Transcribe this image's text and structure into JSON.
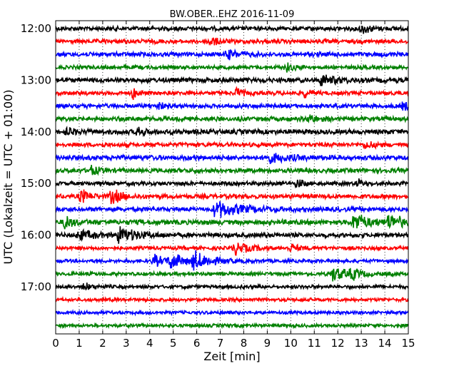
{
  "chart_data": {
    "type": "line",
    "title": "BW.OBER..EHZ 2016-11-09",
    "xlabel": "Zeit  [min]",
    "ylabel": "UTC (Lokalzeit = UTC + 01:00)",
    "xlim": [
      0,
      15
    ],
    "x_ticks": [
      "0",
      "1",
      "2",
      "3",
      "4",
      "5",
      "6",
      "7",
      "8",
      "9",
      "10",
      "11",
      "12",
      "13",
      "14",
      "15"
    ],
    "y_tick_labels": [
      "12:00",
      "13:00",
      "14:00",
      "15:00",
      "16:00",
      "17:00"
    ],
    "grid": {
      "vertical_dotted": true
    },
    "trace_colors": [
      "#000000",
      "#ff0000",
      "#0000ff",
      "#008000"
    ],
    "traces": [
      {
        "start": "12:00",
        "color": "#000000",
        "noise": 0.9,
        "events": [
          {
            "t": 13.0,
            "amp": 1.6,
            "dur": 0.6
          }
        ]
      },
      {
        "start": "12:15",
        "color": "#ff0000",
        "noise": 0.9,
        "events": [
          {
            "t": 6.5,
            "amp": 1.4,
            "dur": 0.8
          }
        ]
      },
      {
        "start": "12:30",
        "color": "#0000ff",
        "noise": 1.0,
        "events": [
          {
            "t": 7.3,
            "amp": 1.6,
            "dur": 0.8
          }
        ]
      },
      {
        "start": "12:45",
        "color": "#008000",
        "noise": 0.7,
        "events": [
          {
            "t": 9.8,
            "amp": 1.3,
            "dur": 0.6
          }
        ]
      },
      {
        "start": "13:00",
        "color": "#000000",
        "noise": 1.1,
        "events": [
          {
            "t": 11.3,
            "amp": 1.6,
            "dur": 1.2
          }
        ]
      },
      {
        "start": "13:15",
        "color": "#ff0000",
        "noise": 0.8,
        "events": [
          {
            "t": 3.3,
            "amp": 1.8,
            "dur": 0.4
          },
          {
            "t": 7.7,
            "amp": 1.6,
            "dur": 0.4
          },
          {
            "t": 10.6,
            "amp": 1.4,
            "dur": 0.4
          }
        ]
      },
      {
        "start": "13:30",
        "color": "#0000ff",
        "noise": 0.9,
        "events": [
          {
            "t": 4.4,
            "amp": 1.5,
            "dur": 0.3
          },
          {
            "t": 14.8,
            "amp": 1.5,
            "dur": 0.3
          }
        ]
      },
      {
        "start": "13:45",
        "color": "#008000",
        "noise": 1.0,
        "events": [
          {
            "t": 10.8,
            "amp": 1.4,
            "dur": 0.6
          }
        ]
      },
      {
        "start": "14:00",
        "color": "#000000",
        "noise": 1.2,
        "events": [
          {
            "t": 0.5,
            "amp": 1.6,
            "dur": 0.5
          },
          {
            "t": 3.5,
            "amp": 1.3,
            "dur": 0.6
          }
        ]
      },
      {
        "start": "14:15",
        "color": "#ff0000",
        "noise": 0.9,
        "events": [
          {
            "t": 13.2,
            "amp": 1.5,
            "dur": 0.5
          }
        ]
      },
      {
        "start": "14:30",
        "color": "#0000ff",
        "noise": 1.2,
        "events": [
          {
            "t": 9.0,
            "amp": 1.4,
            "dur": 1.5
          }
        ]
      },
      {
        "start": "14:45",
        "color": "#008000",
        "noise": 1.0,
        "events": [
          {
            "t": 1.5,
            "amp": 1.4,
            "dur": 0.6
          }
        ]
      },
      {
        "start": "15:00",
        "color": "#000000",
        "noise": 0.8,
        "events": [
          {
            "t": 10.3,
            "amp": 1.3,
            "dur": 0.4
          },
          {
            "t": 12.9,
            "amp": 1.3,
            "dur": 0.3
          }
        ]
      },
      {
        "start": "15:15",
        "color": "#ff0000",
        "noise": 1.0,
        "events": [
          {
            "t": 1.1,
            "amp": 2.4,
            "dur": 0.6
          },
          {
            "t": 2.4,
            "amp": 2.4,
            "dur": 0.7
          }
        ]
      },
      {
        "start": "15:30",
        "color": "#0000ff",
        "noise": 1.0,
        "events": [
          {
            "t": 6.8,
            "amp": 2.6,
            "dur": 1.8
          }
        ]
      },
      {
        "start": "15:45",
        "color": "#008000",
        "noise": 1.3,
        "events": [
          {
            "t": 0.4,
            "amp": 2.0,
            "dur": 0.6
          },
          {
            "t": 12.7,
            "amp": 2.6,
            "dur": 1.2
          },
          {
            "t": 14.2,
            "amp": 2.4,
            "dur": 1.0
          }
        ]
      },
      {
        "start": "16:00",
        "color": "#000000",
        "noise": 1.0,
        "events": [
          {
            "t": 1.0,
            "amp": 1.7,
            "dur": 1.0
          },
          {
            "t": 2.7,
            "amp": 2.7,
            "dur": 1.3
          }
        ]
      },
      {
        "start": "16:15",
        "color": "#ff0000",
        "noise": 0.6,
        "events": [
          {
            "t": 7.6,
            "amp": 2.4,
            "dur": 1.0
          },
          {
            "t": 10.0,
            "amp": 1.4,
            "dur": 0.6
          }
        ]
      },
      {
        "start": "16:30",
        "color": "#0000ff",
        "noise": 0.6,
        "events": [
          {
            "t": 4.2,
            "amp": 2.0,
            "dur": 0.7
          },
          {
            "t": 4.9,
            "amp": 2.6,
            "dur": 1.0
          },
          {
            "t": 5.9,
            "amp": 3.0,
            "dur": 1.1
          }
        ]
      },
      {
        "start": "16:45",
        "color": "#008000",
        "noise": 0.6,
        "events": [
          {
            "t": 11.8,
            "amp": 2.4,
            "dur": 1.0
          },
          {
            "t": 12.6,
            "amp": 1.6,
            "dur": 0.6
          }
        ]
      },
      {
        "start": "17:00",
        "color": "#000000",
        "noise": 0.6,
        "events": [
          {
            "t": 1.2,
            "amp": 1.3,
            "dur": 0.5
          }
        ]
      },
      {
        "start": "17:15",
        "color": "#ff0000",
        "noise": 0.5,
        "events": []
      },
      {
        "start": "17:30",
        "color": "#0000ff",
        "noise": 0.5,
        "events": []
      },
      {
        "start": "17:45",
        "color": "#008000",
        "noise": 0.5,
        "events": []
      }
    ]
  }
}
